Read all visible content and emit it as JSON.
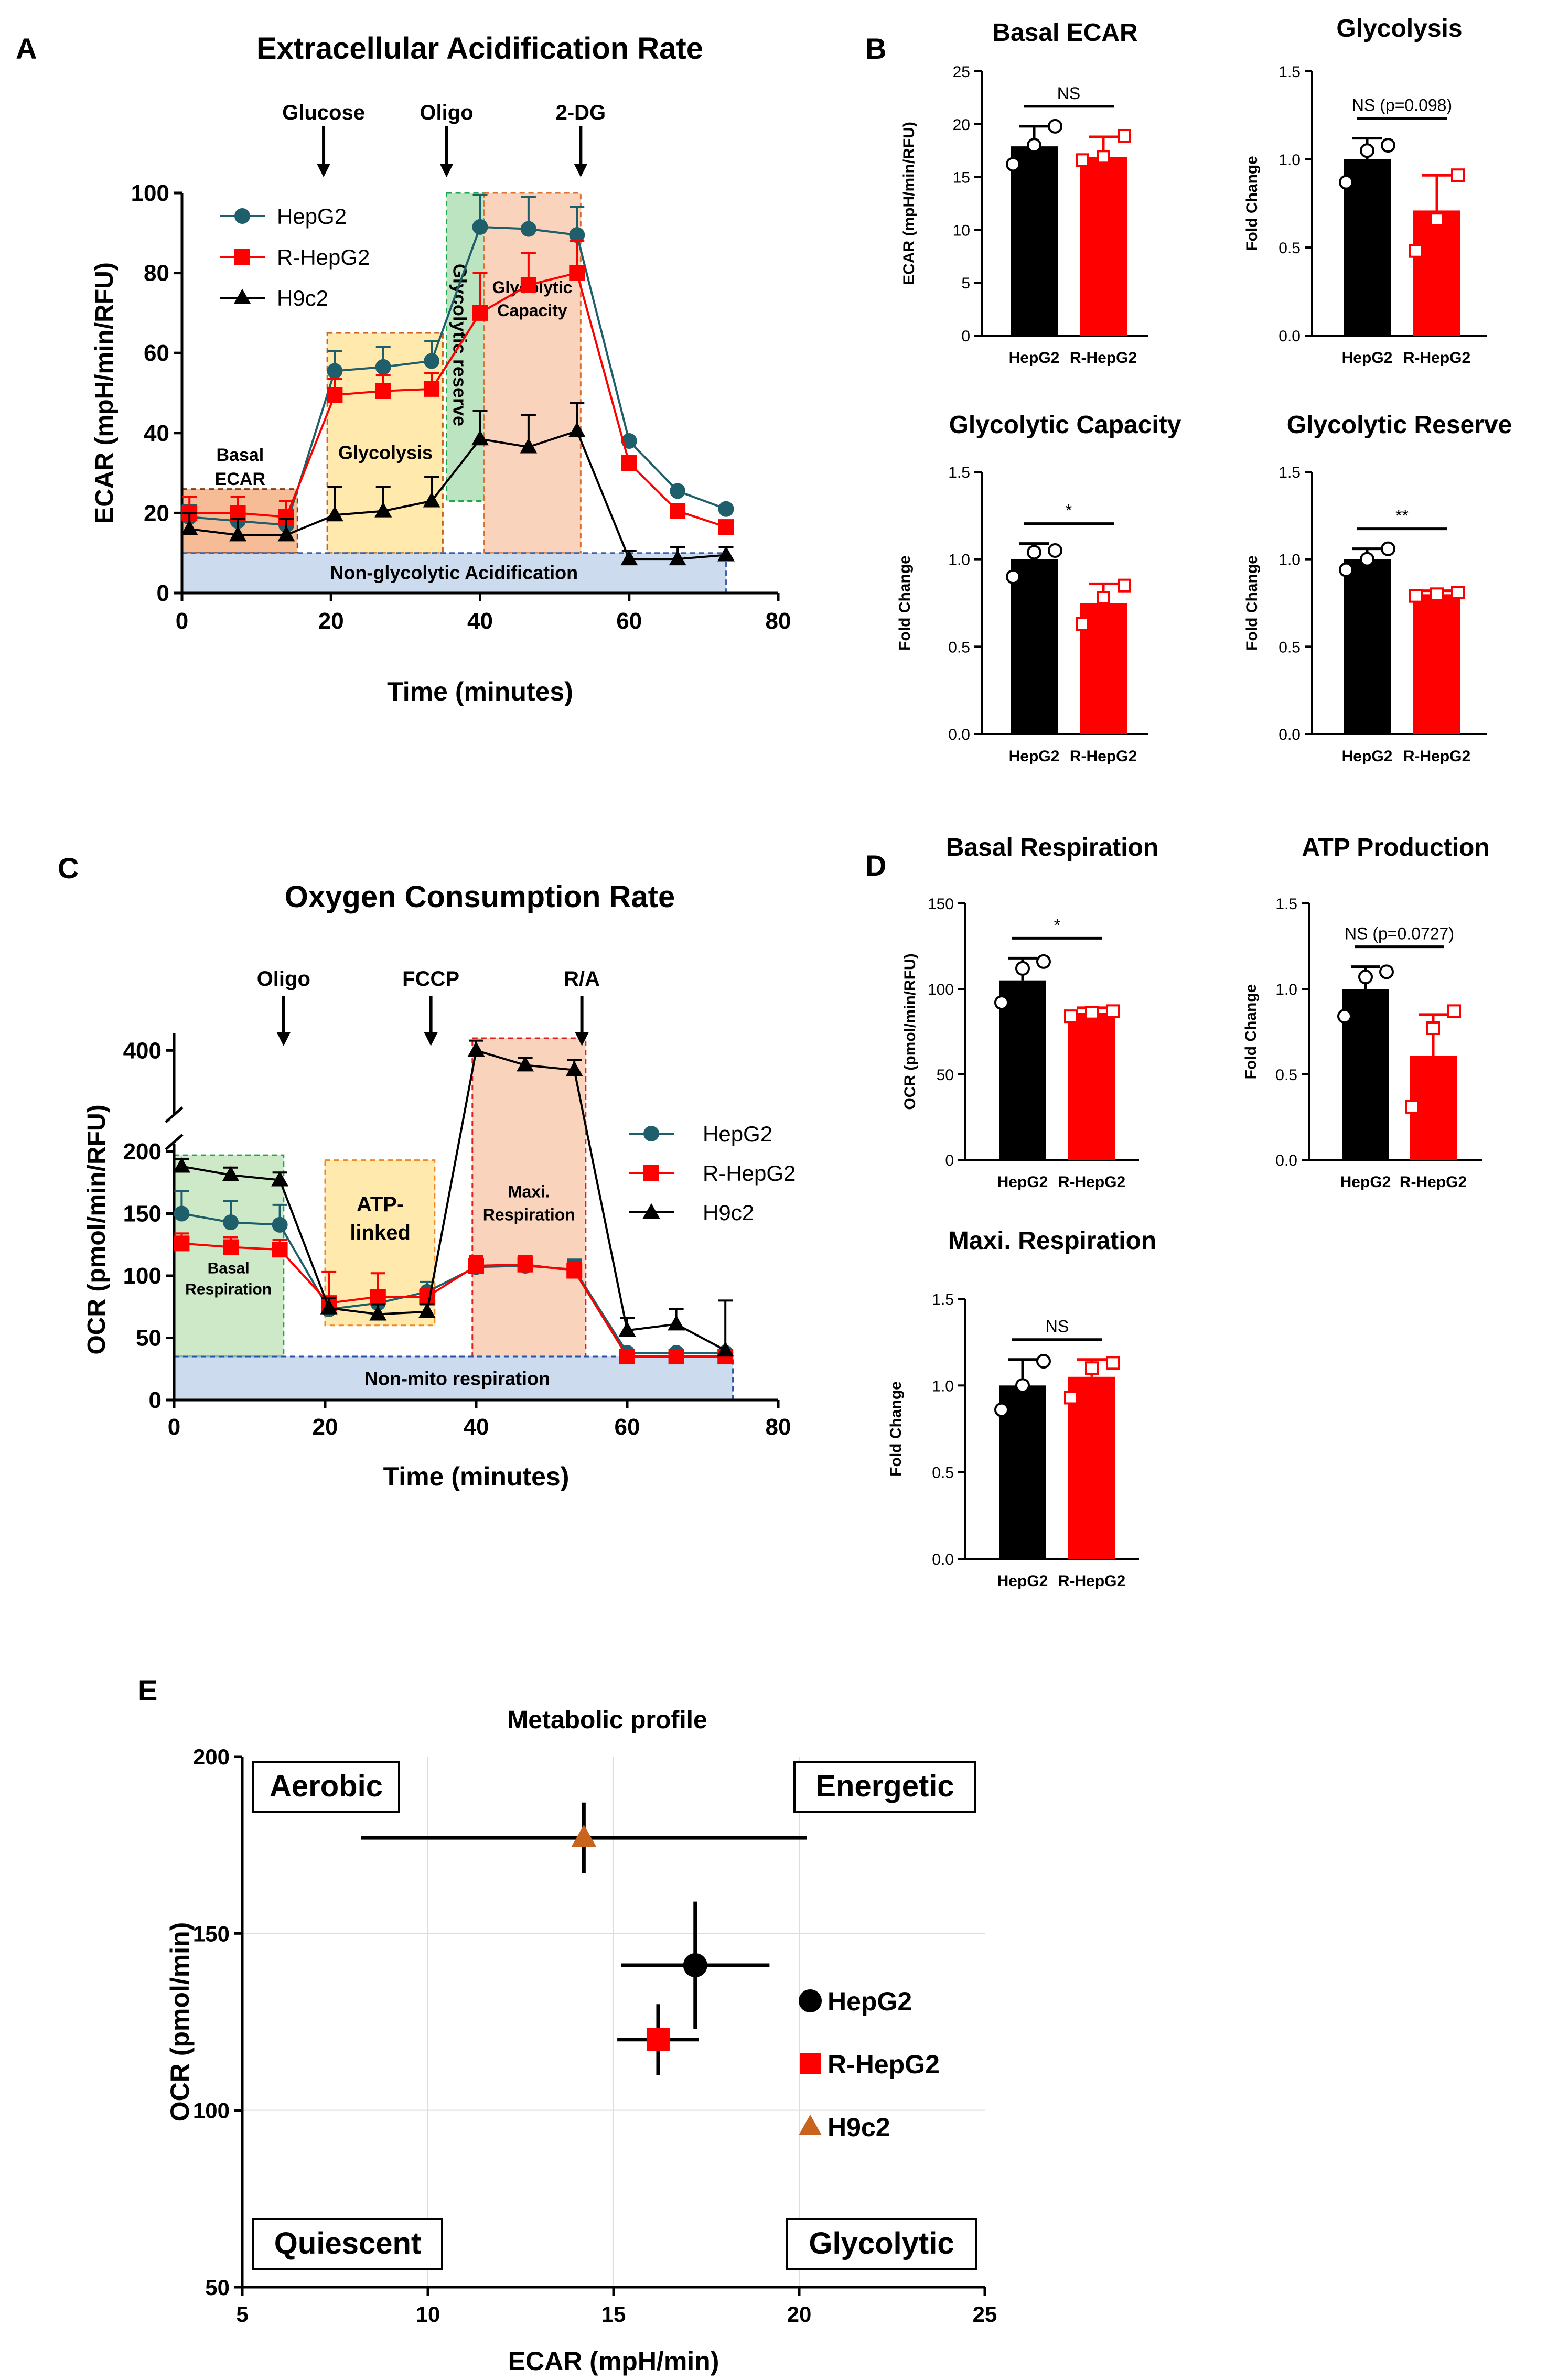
{
  "colors": {
    "hepg2_line": "#1f5f6b",
    "rhepg2": "#ff0000",
    "black": "#000000",
    "h9c2_marker": "#c8641e",
    "shade_basal": "#f2a06a",
    "shade_glycolysis": "#ffe08a",
    "shade_reserve": "#9fd9a6",
    "shade_capacity": "#f7c0a0",
    "shade_nonglyc": "#b8cce8",
    "shade_basal_resp": "#b9dfb0",
    "shade_atp": "#ffe08a",
    "shade_maxi": "#f7c0a0",
    "shade_nonmito": "#b8cce8",
    "text_basal": "#8a3a10",
    "text_glycolysis": "#c8641e",
    "text_reserve": "#1aa84a",
    "text_capacity": "#e07030",
    "text_nonglyc": "#3a62b0",
    "text_basal_resp": "#1aa84a",
    "text_atp": "#ee8a20",
    "text_maxi": "#e02020",
    "text_nonmito": "#2a52a8"
  },
  "panel_letters": {
    "a": "A",
    "b": "B",
    "c": "C",
    "d": "D",
    "e": "E"
  },
  "chart_data": [
    {
      "id": "ecar",
      "type": "line",
      "title": "Extracellular Acidification Rate",
      "xlabel": "Time (minutes)",
      "ylabel": "ECAR (mpH/min/RFU)",
      "xlim": [
        0,
        80
      ],
      "ylim": [
        0,
        100
      ],
      "xticks": [
        0,
        20,
        40,
        60,
        80
      ],
      "yticks": [
        0,
        20,
        40,
        60,
        80,
        100
      ],
      "injections": [
        {
          "label": "Glucose",
          "x": 19
        },
        {
          "label": "Oligo",
          "x": 35.5
        },
        {
          "label": "2-DG",
          "x": 53.5
        }
      ],
      "regions": [
        {
          "label": "Basal ECAR",
          "x0": 0,
          "x1": 15.5,
          "y0": 10,
          "y1": 26,
          "fill": "shade_basal",
          "text": "text_basal"
        },
        {
          "label": "Glycolysis",
          "x0": 19.5,
          "x1": 35,
          "y0": 10,
          "y1": 65,
          "fill": "shade_glycolysis",
          "text": "text_glycolysis"
        },
        {
          "label": "Glycolytic reserve",
          "x0": 35.5,
          "x1": 40.5,
          "y0": 23,
          "y1": 100,
          "fill": "shade_reserve",
          "text": "text_reserve"
        },
        {
          "label": "Glycolytic Capacity",
          "x0": 40.5,
          "x1": 53.5,
          "y0": 10,
          "y1": 100,
          "fill": "shade_capacity",
          "text": "text_capacity"
        },
        {
          "label": "Non-glycolytic Acidification",
          "x0": 0,
          "x1": 73,
          "y0": 0,
          "y1": 10,
          "fill": "shade_nonglyc",
          "text": "text_nonglyc"
        }
      ],
      "x": [
        1,
        7.5,
        14,
        20.5,
        27,
        33.5,
        40,
        46.5,
        53,
        60,
        66.5,
        73
      ],
      "series": [
        {
          "name": "HepG2",
          "color": "hepg2_line",
          "marker": "circle",
          "values": [
            19,
            18,
            17,
            55.5,
            56.5,
            58,
            91.5,
            91,
            89.5,
            38,
            25.5,
            21
          ],
          "err": [
            3,
            2,
            2,
            5,
            5,
            5,
            8,
            8,
            7,
            0,
            0,
            0
          ]
        },
        {
          "name": "R-HepG2",
          "color": "rhepg2",
          "marker": "square",
          "values": [
            20,
            20,
            19,
            49.5,
            50.5,
            51,
            70,
            77,
            80,
            32.5,
            20.5,
            16.5
          ],
          "err": [
            4,
            4,
            4,
            4,
            4,
            4,
            10,
            8,
            8,
            0,
            0,
            0
          ]
        },
        {
          "name": "H9c2",
          "color": "black",
          "marker": "triangle",
          "values": [
            16,
            14.5,
            14.5,
            19.5,
            20.5,
            23,
            38.5,
            36.5,
            40.5,
            8.5,
            8.5,
            9.5
          ],
          "err": [
            4,
            4,
            4,
            7,
            6,
            6,
            7,
            8,
            7,
            2,
            3,
            2
          ]
        }
      ]
    },
    {
      "id": "basal_ecar",
      "type": "bar",
      "title": "Basal ECAR",
      "ylabel": "ECAR (mpH/min/RFU)",
      "ylim": [
        0,
        25
      ],
      "yticks": [
        0,
        5,
        10,
        15,
        20,
        25
      ],
      "categories": [
        "HepG2",
        "R-HepG2"
      ],
      "values": [
        17.9,
        16.9
      ],
      "err": [
        1.9,
        1.9
      ],
      "points": [
        [
          16.2,
          18.0,
          19.8
        ],
        [
          16.6,
          16.9,
          18.9
        ]
      ],
      "sig": "NS"
    },
    {
      "id": "glycolysis",
      "type": "bar",
      "title": "Glycolysis",
      "ylabel": "Fold Change",
      "ylim": [
        0,
        1.5
      ],
      "yticks": [
        0.0,
        0.5,
        1.0,
        1.5
      ],
      "categories": [
        "HepG2",
        "R-HepG2"
      ],
      "values": [
        1.0,
        0.71
      ],
      "err": [
        0.12,
        0.2
      ],
      "points": [
        [
          0.87,
          1.05,
          1.08
        ],
        [
          0.48,
          0.66,
          0.91
        ]
      ],
      "sig": "NS (p=0.098)"
    },
    {
      "id": "glycolytic_capacity",
      "type": "bar",
      "title": "Glycolytic Capacity",
      "ylabel": "Fold Change",
      "ylim": [
        0,
        1.5
      ],
      "yticks": [
        0.0,
        0.5,
        1.0,
        1.5
      ],
      "categories": [
        "HepG2",
        "R-HepG2"
      ],
      "values": [
        1.0,
        0.75
      ],
      "err": [
        0.09,
        0.11
      ],
      "points": [
        [
          0.9,
          1.04,
          1.05
        ],
        [
          0.63,
          0.78,
          0.85
        ]
      ],
      "sig": "*"
    },
    {
      "id": "glycolytic_reserve",
      "type": "bar",
      "title": "Glycolytic Reserve",
      "ylabel": "Fold Change",
      "ylim": [
        0,
        1.5
      ],
      "yticks": [
        0.0,
        0.5,
        1.0,
        1.5
      ],
      "categories": [
        "HepG2",
        "R-HepG2"
      ],
      "values": [
        1.0,
        0.8
      ],
      "err": [
        0.06,
        0.02
      ],
      "points": [
        [
          0.94,
          1.0,
          1.06
        ],
        [
          0.79,
          0.8,
          0.81
        ]
      ],
      "sig": "**"
    },
    {
      "id": "ocr",
      "type": "line",
      "title": "Oxygen Consumption Rate",
      "xlabel": "Time (minutes)",
      "ylabel": "OCR (pmol/min/RFU)",
      "xlim": [
        0,
        80
      ],
      "lower_range": [
        0,
        200
      ],
      "upper_range": [
        350,
        410
      ],
      "xticks": [
        0,
        20,
        40,
        60,
        80
      ],
      "yticks_lower": [
        0,
        50,
        100,
        150,
        200
      ],
      "yticks_upper": [
        400
      ],
      "injections": [
        {
          "label": "Oligo",
          "x": 14.5
        },
        {
          "label": "FCCP",
          "x": 34
        },
        {
          "label": "R/A",
          "x": 54
        }
      ],
      "regions": [
        {
          "label": "Basal Respiration",
          "x0": 0,
          "x1": 14.5,
          "y0": 35,
          "y1": 197,
          "fill": "shade_basal_resp",
          "text": "text_basal_resp"
        },
        {
          "label": "ATP-linked",
          "x0": 20,
          "x1": 34.5,
          "y0": 60,
          "y1": 193,
          "fill": "shade_atp",
          "text": "text_atp"
        },
        {
          "label": "Maxi. Respiration",
          "x0": 39.5,
          "x1": 54.5,
          "y0": 35,
          "y1": 410,
          "fill": "shade_maxi",
          "text": "text_maxi"
        },
        {
          "label": "Non-mito respiration",
          "x0": 0,
          "x1": 74,
          "y0": 0,
          "y1": 35,
          "fill": "shade_nonmito",
          "text": "text_nonmito"
        }
      ],
      "x": [
        1,
        7.5,
        14,
        20.5,
        27,
        33.5,
        40,
        46.5,
        53,
        60,
        66.5,
        73
      ],
      "series": [
        {
          "name": "HepG2",
          "color": "hepg2_line",
          "marker": "circle",
          "values": [
            150,
            143,
            141,
            73,
            78,
            87,
            107,
            108,
            105,
            38,
            38,
            38
          ],
          "err": [
            18,
            17,
            16,
            8,
            8,
            8,
            8,
            8,
            8,
            0,
            0,
            0
          ]
        },
        {
          "name": "R-HepG2",
          "color": "rhepg2",
          "marker": "square",
          "values": [
            126,
            123,
            121,
            78,
            83,
            83,
            108,
            109,
            104,
            35,
            35,
            35
          ],
          "err": [
            8,
            8,
            8,
            25,
            19,
            6,
            8,
            7,
            7,
            0,
            0,
            0
          ]
        },
        {
          "name": "H9c2",
          "color": "black",
          "marker": "triangle",
          "values": [
            188,
            181,
            177,
            74,
            69,
            71,
            400,
            388,
            384,
            56,
            61,
            40
          ],
          "err": [
            6,
            6,
            6,
            8,
            8,
            6,
            8,
            6,
            8,
            10,
            12,
            40
          ]
        }
      ]
    },
    {
      "id": "basal_resp",
      "type": "bar",
      "title": "Basal Respiration",
      "ylabel": "OCR (pmol/min/RFU)",
      "ylim": [
        0,
        150
      ],
      "yticks": [
        0,
        50,
        100,
        150
      ],
      "categories": [
        "HepG2",
        "R-HepG2"
      ],
      "values": [
        105,
        86
      ],
      "err": [
        13,
        3
      ],
      "points": [
        [
          92,
          112,
          116
        ],
        [
          84,
          86,
          87
        ]
      ],
      "sig": "*"
    },
    {
      "id": "atp_prod",
      "type": "bar",
      "title": "ATP Production",
      "ylabel": "Fold Change",
      "ylim": [
        0,
        1.5
      ],
      "yticks": [
        0.0,
        0.5,
        1.0,
        1.5
      ],
      "categories": [
        "HepG2",
        "R-HepG2"
      ],
      "values": [
        1.0,
        0.61
      ],
      "err": [
        0.13,
        0.24
      ],
      "points": [
        [
          0.84,
          1.07,
          1.1
        ],
        [
          0.31,
          0.77,
          0.87
        ]
      ],
      "sig": "NS (p=0.0727)"
    },
    {
      "id": "maxi_resp",
      "type": "bar",
      "title": "Maxi. Respiration",
      "ylabel": "Fold Change",
      "ylim": [
        0,
        1.5
      ],
      "yticks": [
        0.0,
        0.5,
        1.0,
        1.5
      ],
      "categories": [
        "HepG2",
        "R-HepG2"
      ],
      "values": [
        1.0,
        1.05
      ],
      "err": [
        0.15,
        0.1
      ],
      "points": [
        [
          0.86,
          1.0,
          1.14
        ],
        [
          0.93,
          1.1,
          1.13
        ]
      ],
      "sig": "NS"
    },
    {
      "id": "metabolic",
      "type": "scatter",
      "title": "Metabolic profile",
      "xlabel": "ECAR (mpH/min)",
      "ylabel": "OCR (pmol/min)",
      "xlim": [
        5,
        25
      ],
      "ylim": [
        50,
        200
      ],
      "xticks": [
        5,
        10,
        15,
        20,
        25
      ],
      "yticks": [
        50,
        100,
        150,
        200
      ],
      "quadrants": [
        "Aerobic",
        "Energetic",
        "Quiescent",
        "Glycolytic"
      ],
      "points": [
        {
          "name": "HepG2",
          "x": 17.2,
          "y": 141,
          "xerr": 2.0,
          "yerr": 18,
          "marker": "circle",
          "color": "black"
        },
        {
          "name": "R-HepG2",
          "x": 16.2,
          "y": 120,
          "xerr": 1.1,
          "yerr": 10,
          "marker": "square",
          "color": "rhepg2"
        },
        {
          "name": "H9c2",
          "x": 14.2,
          "y": 177,
          "xerr": 6.0,
          "yerr": 10,
          "marker": "triangle",
          "color": "h9c2_marker"
        }
      ]
    }
  ]
}
